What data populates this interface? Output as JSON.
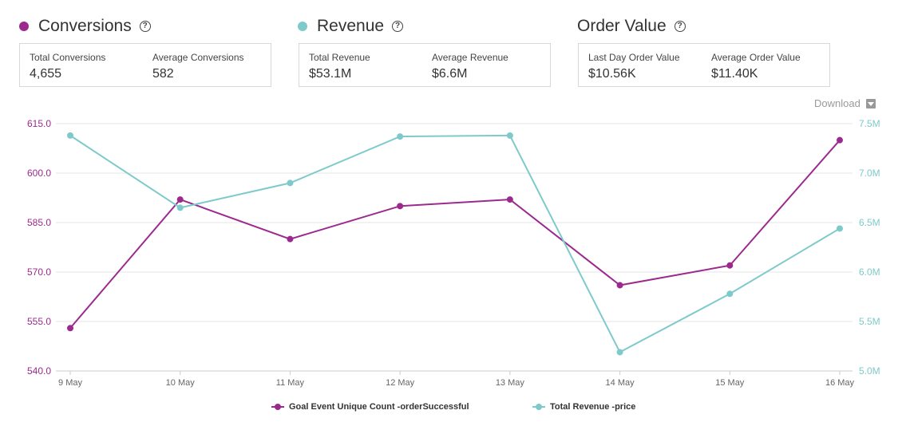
{
  "colors": {
    "conversions": "#9c2a8e",
    "revenue": "#7ecacb"
  },
  "sections": [
    {
      "title": "Conversions",
      "color": "#9c2a8e",
      "metrics": [
        {
          "label": "Total Conversions",
          "value": "4,655"
        },
        {
          "label": "Average Conversions",
          "value": "582"
        }
      ]
    },
    {
      "title": "Revenue",
      "color": "#7ecacb",
      "metrics": [
        {
          "label": "Total Revenue",
          "value": "$53.1M"
        },
        {
          "label": "Average Revenue",
          "value": "$6.6M"
        }
      ]
    },
    {
      "title": "Order Value",
      "color": "",
      "metrics": [
        {
          "label": "Last Day Order Value",
          "value": "$10.56K"
        },
        {
          "label": "Average Order Value",
          "value": "$11.40K"
        }
      ]
    }
  ],
  "help_glyph": "?",
  "download_label": "Download",
  "chart_data": {
    "type": "line",
    "categories": [
      "9 May",
      "10 May",
      "11 May",
      "12 May",
      "13 May",
      "14 May",
      "15 May",
      "16 May"
    ],
    "left_axis": {
      "ticks": [
        "540.0",
        "555.0",
        "570.0",
        "585.0",
        "600.0",
        "615.0"
      ],
      "range": [
        540,
        615
      ]
    },
    "right_axis": {
      "ticks": [
        "5.0M",
        "5.5M",
        "6.0M",
        "6.5M",
        "7.0M",
        "7.5M"
      ],
      "range": [
        5.0,
        7.5
      ]
    },
    "series": [
      {
        "name": "Goal Event Unique Count -orderSuccessful",
        "axis": "left",
        "color": "#9c2a8e",
        "values": [
          553,
          592,
          580,
          590,
          592,
          566,
          572,
          610
        ]
      },
      {
        "name": "Total Revenue -price",
        "axis": "right",
        "color": "#7ecacb",
        "values": [
          7.38,
          6.65,
          6.9,
          7.37,
          7.38,
          5.19,
          5.78,
          6.44
        ]
      }
    ],
    "grid": true,
    "legend": "bottom-center"
  }
}
